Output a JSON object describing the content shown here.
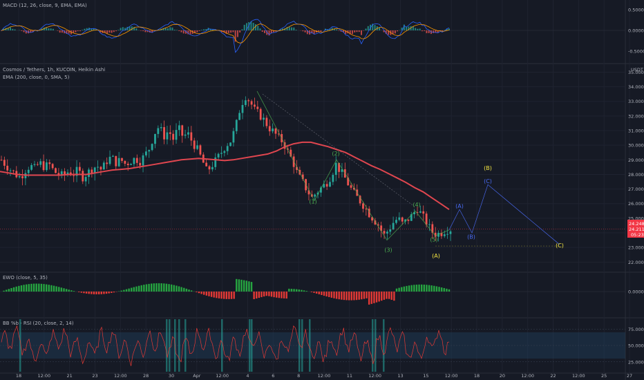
{
  "chart_data": {
    "type": "line",
    "symbol_label": "Cosmos / Tethers, 1h, KUCOIN, Heikin Ashi",
    "currency": "USDT",
    "panels": {
      "macd": {
        "label": "MACD (12, 26, close, 9, EMA, EMA)",
        "ticks": [
          "0.5000",
          "0.0000",
          "-0.5000"
        ]
      },
      "price": {
        "ema_label": "EMA (200, close, 0, SMA, 5)",
        "ticks": [
          "35.0000",
          "34.0000",
          "33.0000",
          "32.0000",
          "31.0000",
          "30.0000",
          "29.0000",
          "28.0000",
          "27.0000",
          "26.0000",
          "25.0000",
          "24.0000",
          "23.0000",
          "22.0000"
        ],
        "ylim": [
          21.4,
          35.4
        ],
        "current_price": "24.2485",
        "current_price_2": "24.2110",
        "countdown": "05:23",
        "price_line": [
          29.0,
          28.6,
          28.3,
          28.0,
          27.8,
          28.3,
          28.6,
          28.4,
          28.8,
          28.5,
          28.7,
          28.2,
          28.0,
          27.9,
          28.2,
          28.0,
          28.3,
          27.8,
          28.1,
          28.4,
          28.6,
          28.3,
          28.9,
          29.2,
          28.8,
          29.0,
          28.7,
          28.9,
          29.1,
          28.9,
          29.3,
          29.8,
          30.8,
          31.3,
          30.6,
          31.0,
          30.4,
          31.2,
          30.6,
          30.8,
          30.2,
          29.7,
          29.0,
          28.2,
          28.6,
          29.0,
          29.5,
          30.0,
          30.3,
          31.2,
          32.6,
          33.4,
          33.0,
          32.4,
          32.1,
          31.7,
          31.2,
          30.9,
          30.5,
          30.2,
          29.5,
          28.9,
          28.0,
          27.5,
          26.9,
          26.4,
          26.8,
          27.1,
          27.4,
          27.9,
          28.7,
          28.2,
          27.7,
          27.1,
          26.6,
          26.2,
          25.8,
          25.3,
          24.9,
          24.5,
          23.8,
          24.2,
          24.7,
          25.0,
          24.6,
          24.9,
          25.2,
          25.7,
          25.2,
          24.7,
          24.1,
          23.9,
          24.0,
          24.2,
          24.25
        ],
        "ema_line": [
          28.2,
          28.1,
          28.0,
          27.95,
          27.95,
          27.95,
          27.95,
          27.95,
          28.0,
          28.0,
          28.0,
          28.1,
          28.2,
          28.3,
          28.35,
          28.4,
          28.5,
          28.6,
          28.7,
          28.8,
          28.9,
          29.0,
          29.05,
          29.1,
          29.05,
          29.0,
          28.95,
          29.0,
          29.1,
          29.2,
          29.3,
          29.4,
          29.6,
          29.9,
          30.1,
          30.2,
          30.2,
          30.05,
          29.9,
          29.7,
          29.5,
          29.2,
          28.9,
          28.6,
          28.35,
          28.05,
          27.75,
          27.45,
          27.1,
          26.8,
          26.4,
          26.0,
          25.6
        ],
        "waves": [
          {
            "label": "(1)",
            "x": "Apr 6 18:00",
            "y": 26.0,
            "color": "#4caf50"
          },
          {
            "label": "(2)",
            "x": "Apr 8",
            "y": 29.3,
            "color": "#4caf50"
          },
          {
            "label": "(3)",
            "x": "Apr 11 12:00",
            "y": 22.9,
            "color": "#4caf50"
          },
          {
            "label": "(4)",
            "x": "Apr 13",
            "y": 25.7,
            "color": "#4caf50"
          },
          {
            "label": "(5)",
            "x": "Apr 15",
            "y": 23.6,
            "color": "#4caf50"
          },
          {
            "label": "(A)",
            "x": "Apr 16",
            "y": 22.2,
            "color": "#f5e642"
          },
          {
            "label": "(A)",
            "x": "Apr 16 12:00",
            "y": 25.4,
            "color": "#4a6cf7"
          },
          {
            "label": "(B)",
            "x": "Apr 17",
            "y": 23.8,
            "color": "#4a6cf7"
          },
          {
            "label": "(B)",
            "x": "Apr 18",
            "y": 28.4,
            "color": "#f5e642"
          },
          {
            "label": "(C)",
            "x": "Apr 18",
            "y": 27.5,
            "color": "#4a6cf7"
          },
          {
            "label": "(C)",
            "x": "Apr 22 12:00",
            "y": 23.1,
            "color": "#f5e642"
          }
        ]
      },
      "ewo": {
        "label": "EWO (close, 5, 35)",
        "ticks": [
          "0.0000"
        ]
      },
      "rsi": {
        "label": "BB %b - RSI (20, close, 2, 14)",
        "ticks": [
          "75.0000",
          "50.0000",
          "25.0000"
        ]
      }
    },
    "x_ticks": [
      "18",
      "12:00",
      "21",
      "23",
      "12:00",
      "28",
      "30",
      "Apr",
      "12:00",
      "4",
      "6",
      "8",
      "12:00",
      "11",
      "12:00",
      "13",
      "15",
      "12:00",
      "18",
      "20",
      "12:00",
      "22",
      "12:00",
      "25",
      "27"
    ],
    "colors": {
      "bull": "#26a69a",
      "bear": "#ef5350",
      "ema": "#e0464f",
      "macd": "#2962ff",
      "signal": "#ff9800",
      "rsi": "#e53935",
      "rsi_band": "#1f3d5c",
      "price_tag": "#f23645"
    }
  }
}
